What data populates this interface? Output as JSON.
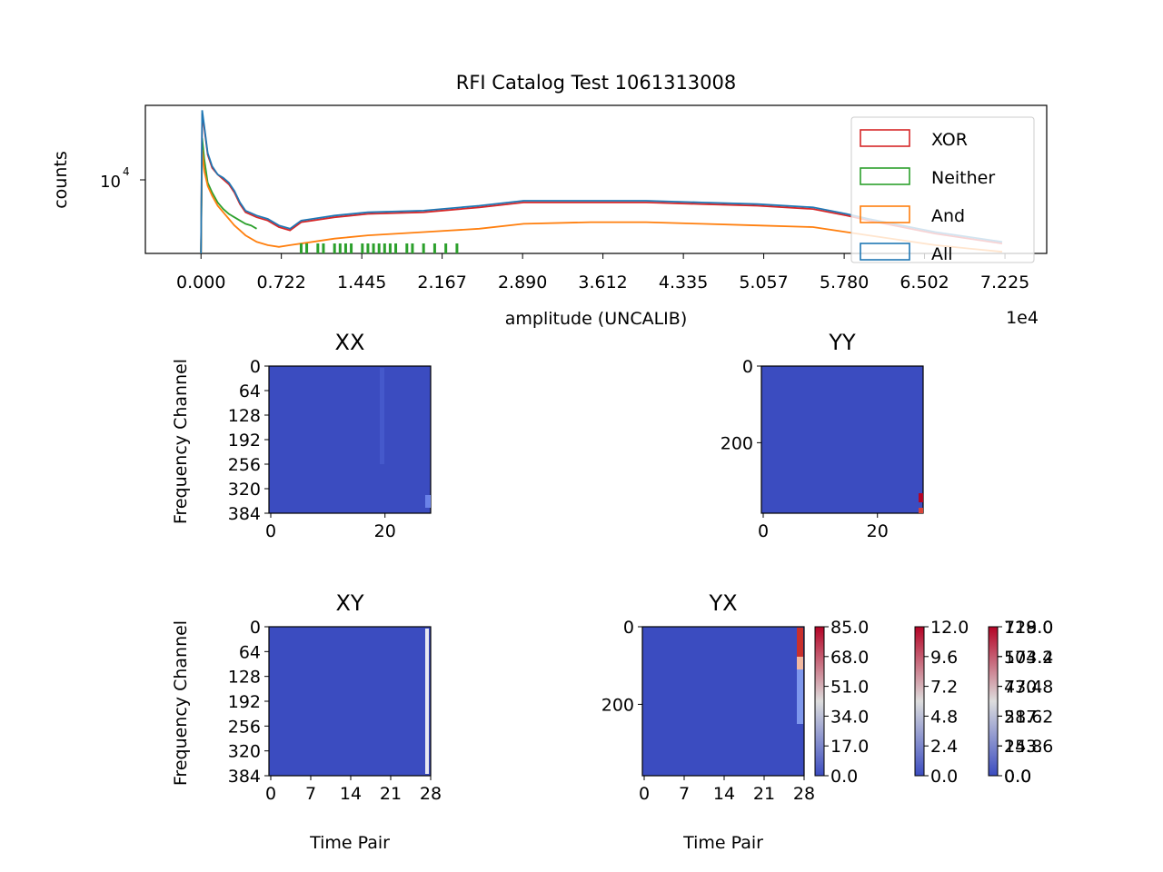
{
  "colors": {
    "xor": "#d62728",
    "neither": "#2ca02c",
    "and": "#ff7f0e",
    "all": "#1f77b4",
    "heat_low": "#3b4cc0",
    "heat_mid": "#dddddd",
    "heat_high": "#b40426"
  },
  "chart_data": [
    {
      "type": "histogram",
      "title": "RFI Catalog Test 1061313008",
      "xlabel": "amplitude (UNCALIB)",
      "ylabel": "counts",
      "x_multiplier": "1e4",
      "yscale": "log",
      "ytick_base": "10",
      "ytick_exp": "4",
      "xticks": [
        "0.000",
        "0.722",
        "1.445",
        "2.167",
        "2.890",
        "3.612",
        "4.335",
        "5.057",
        "5.780",
        "6.502",
        "7.225"
      ],
      "xlim": [
        -0.5,
        7.6
      ],
      "ylim_log10": [
        3.55,
        4.45
      ],
      "legend": {
        "placement": "top-right",
        "entries": [
          "XOR",
          "Neither",
          "And",
          "All"
        ]
      },
      "series": [
        {
          "name": "All",
          "color_key": "all",
          "x": [
            0,
            0.01,
            0.03,
            0.06,
            0.1,
            0.15,
            0.2,
            0.25,
            0.3,
            0.35,
            0.4,
            0.5,
            0.6,
            0.7,
            0.8,
            0.9,
            1.0,
            1.2,
            1.5,
            2.0,
            2.5,
            2.9,
            3.5,
            4.0,
            4.5,
            5.0,
            5.5,
            5.8,
            6.0,
            6.3,
            6.6,
            6.9,
            7.2
          ],
          "y": [
            3.55,
            4.42,
            4.32,
            4.16,
            4.08,
            4.03,
            4.01,
            3.98,
            3.93,
            3.86,
            3.81,
            3.78,
            3.76,
            3.72,
            3.7,
            3.75,
            3.76,
            3.78,
            3.8,
            3.81,
            3.84,
            3.87,
            3.87,
            3.87,
            3.86,
            3.85,
            3.83,
            3.79,
            3.76,
            3.72,
            3.68,
            3.65,
            3.62
          ]
        },
        {
          "name": "XOR",
          "color_key": "xor",
          "x": [
            0,
            0.01,
            0.03,
            0.06,
            0.1,
            0.15,
            0.2,
            0.25,
            0.3,
            0.35,
            0.4,
            0.5,
            0.6,
            0.7,
            0.8,
            0.9,
            1.0,
            1.2,
            1.5,
            2.0,
            2.5,
            2.9,
            3.5,
            4.0,
            4.5,
            5.0,
            5.5,
            5.8,
            6.0,
            6.3,
            6.6,
            6.9,
            7.2
          ],
          "y": [
            3.55,
            4.4,
            4.31,
            4.15,
            4.07,
            4.03,
            4.0,
            3.97,
            3.92,
            3.85,
            3.8,
            3.77,
            3.75,
            3.71,
            3.69,
            3.74,
            3.75,
            3.77,
            3.79,
            3.8,
            3.83,
            3.86,
            3.86,
            3.86,
            3.85,
            3.84,
            3.82,
            3.78,
            3.75,
            3.71,
            3.67,
            3.64,
            3.61
          ]
        },
        {
          "name": "Neither",
          "color_key": "neither",
          "x": [
            0,
            0.01,
            0.03,
            0.06,
            0.1,
            0.15,
            0.2,
            0.25,
            0.3,
            0.35,
            0.4,
            0.45,
            0.5
          ],
          "y": [
            3.55,
            4.25,
            4.12,
            3.98,
            3.92,
            3.86,
            3.82,
            3.79,
            3.77,
            3.75,
            3.73,
            3.72,
            3.7
          ]
        },
        {
          "name": "And",
          "color_key": "and",
          "x": [
            0,
            0.01,
            0.03,
            0.06,
            0.1,
            0.15,
            0.2,
            0.25,
            0.3,
            0.35,
            0.4,
            0.5,
            0.6,
            0.7,
            0.8,
            1.0,
            1.2,
            1.5,
            2.0,
            2.5,
            2.9,
            3.5,
            4.0,
            4.5,
            5.0,
            5.5,
            5.8,
            6.0,
            6.3,
            6.6,
            6.9,
            7.2
          ],
          "y": [
            3.55,
            4.18,
            4.05,
            3.96,
            3.9,
            3.84,
            3.8,
            3.76,
            3.72,
            3.69,
            3.66,
            3.62,
            3.6,
            3.59,
            3.6,
            3.62,
            3.64,
            3.66,
            3.68,
            3.7,
            3.73,
            3.74,
            3.74,
            3.73,
            3.72,
            3.71,
            3.68,
            3.66,
            3.63,
            3.6,
            3.58,
            3.56
          ]
        }
      ],
      "neither_tail_x": [
        0.9,
        0.95,
        1.05,
        1.1,
        1.2,
        1.25,
        1.3,
        1.35,
        1.45,
        1.5,
        1.55,
        1.6,
        1.65,
        1.7,
        1.75,
        1.85,
        1.9,
        2.0,
        2.1,
        2.2,
        2.3
      ]
    },
    {
      "type": "heatmap",
      "panels": [
        {
          "id": "XX",
          "title": "XX",
          "ylabel": "Frequency Channel",
          "yticks": [
            "0",
            "64",
            "128",
            "192",
            "256",
            "320",
            "384"
          ],
          "xticks": [
            "0",
            "20"
          ],
          "xlim": [
            0,
            28
          ],
          "ylim": [
            0,
            384
          ]
        },
        {
          "id": "YY",
          "title": "YY",
          "ylabel": "",
          "yticks": [
            "0",
            "200"
          ],
          "xticks": [
            "0",
            "20"
          ],
          "xlim": [
            0,
            28
          ],
          "ylim": [
            0,
            384
          ]
        },
        {
          "id": "XY",
          "title": "XY",
          "ylabel": "Frequency Channel",
          "xlabel": "Time Pair",
          "yticks": [
            "0",
            "64",
            "128",
            "192",
            "256",
            "320",
            "384"
          ],
          "xticks": [
            "0",
            "7",
            "14",
            "21",
            "28"
          ],
          "xlim": [
            0,
            28
          ],
          "ylim": [
            0,
            384
          ]
        },
        {
          "id": "YX",
          "title": "YX",
          "ylabel": "",
          "xlabel": "Time Pair",
          "yticks": [
            "0",
            "200"
          ],
          "xticks": [
            "0",
            "7",
            "14",
            "21",
            "28"
          ],
          "xlim": [
            0,
            28
          ],
          "ylim": [
            0,
            384
          ]
        }
      ],
      "colorbars": [
        {
          "ticks": [
            "85.0",
            "68.0",
            "51.0",
            "34.0",
            "17.0",
            "0.0"
          ]
        },
        {
          "ticks": [
            "12.0",
            "9.6",
            "7.2",
            "4.8",
            "2.4",
            "0.0"
          ]
        },
        {
          "ticks": [
            "129.0",
            "103.2",
            "77.4",
            "51.6",
            "25.8",
            "0.0"
          ]
        },
        {
          "ticks": [
            "718.0",
            "574.4",
            "430.8",
            "287.2",
            "143.6",
            "0.0"
          ]
        }
      ]
    }
  ]
}
